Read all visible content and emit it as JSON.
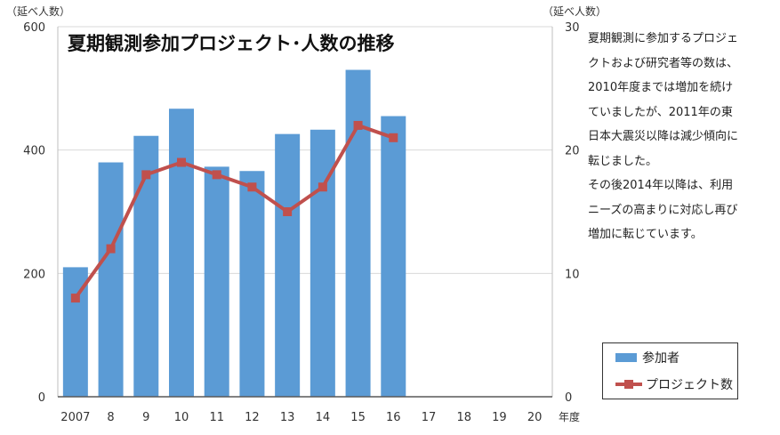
{
  "chart_data": {
    "type": "bar+line",
    "title": "夏期観測参加プロジェクト･人数の推移",
    "categories": [
      "2007",
      "8",
      "9",
      "10",
      "11",
      "12",
      "13",
      "14",
      "15",
      "16",
      "17",
      "18",
      "19",
      "20"
    ],
    "x_axis_unit": "年度",
    "y_left": {
      "unit": "（延べ人数）",
      "ylim": [
        0,
        600
      ],
      "ticks": [
        "0",
        "200",
        "400",
        "600"
      ]
    },
    "y_right": {
      "unit": "（延べ人数）",
      "ylim": [
        0,
        30
      ],
      "ticks": [
        "0",
        "10",
        "20",
        "30"
      ]
    },
    "grid": true,
    "series": [
      {
        "name": "参加者",
        "type": "bar",
        "axis": "left",
        "color": "#5b9bd5",
        "values": [
          210,
          380,
          423,
          467,
          373,
          366,
          426,
          433,
          530,
          455,
          null,
          null,
          null,
          null
        ]
      },
      {
        "name": "プロジェクト数",
        "type": "line",
        "axis": "right",
        "color": "#c0504d",
        "values": [
          8,
          12,
          18,
          19,
          18,
          17,
          15,
          17,
          22,
          21,
          null,
          null,
          null,
          null
        ]
      }
    ],
    "legend_position": "bottom-right"
  },
  "annotation": {
    "lines": [
      "夏期観測に参加するプロジェ",
      "クトおよび研究者等の数は、",
      "2010年度までは増加を続け",
      "ていましたが、2011年の東",
      "日本大震災以降は減少傾向に",
      "転じました。",
      "その後2014年以降は、利用",
      "ニーズの高まりに対応し再び",
      "増加に転じています。"
    ]
  }
}
